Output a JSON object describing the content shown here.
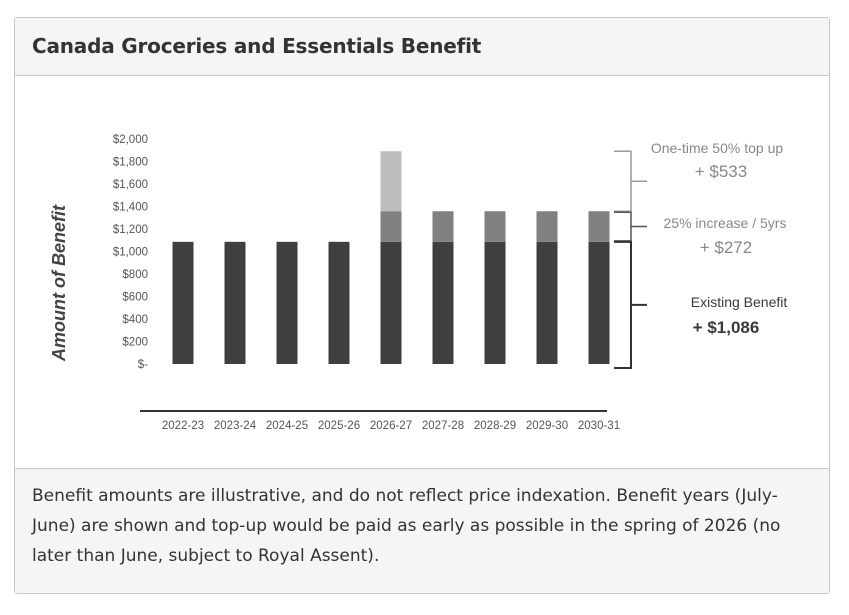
{
  "header": {
    "title": "Canada Groceries and Essentials Benefit"
  },
  "footer": {
    "caption": "Benefit amounts are illustrative, and do not reflect price indexation. Benefit years (July-June) are shown and top-up would be paid as early as possible in the spring of 2026 (no later than June, subject to Royal Assent)."
  },
  "chart_data": {
    "type": "bar",
    "stacked": true,
    "title": "",
    "xlabel": "",
    "ylabel": "Amount of Benefit",
    "ylim": [
      0,
      2000
    ],
    "y_ticks": [
      0,
      200,
      400,
      600,
      800,
      1000,
      1200,
      1400,
      1600,
      1800,
      2000
    ],
    "y_tick_labels": [
      "$-",
      "$200",
      "$400",
      "$600",
      "$800",
      "$1,000",
      "$1,200",
      "$1,400",
      "$1,600",
      "$1,800",
      "$2,000"
    ],
    "grid": false,
    "categories": [
      "2022-23",
      "2023-24",
      "2024-25",
      "2025-26",
      "2026-27",
      "2027-28",
      "2028-29",
      "2029-30",
      "2030-31"
    ],
    "series": [
      {
        "values": [
          1086,
          1086,
          1086,
          1086,
          1086,
          1086,
          1086,
          1086,
          1086
        ],
        "color": "#3f3f3f"
      },
      {
        "values": [
          0,
          0,
          0,
          0,
          272,
          272,
          272,
          272,
          272
        ],
        "color": "#808080"
      },
      {
        "values": [
          0,
          0,
          0,
          0,
          533,
          0,
          0,
          0,
          0
        ],
        "color": "#bdbdbd"
      }
    ],
    "annotations": [
      {
        "title": "One-time 50% top up",
        "amount": "+ $533",
        "color": "#888888"
      },
      {
        "title": "25% increase / 5yrs",
        "amount": "+ $272",
        "color": "#888888"
      },
      {
        "title": "Existing Benefit",
        "amount": "+ $1,086",
        "color": "#3a3a3a"
      }
    ]
  }
}
